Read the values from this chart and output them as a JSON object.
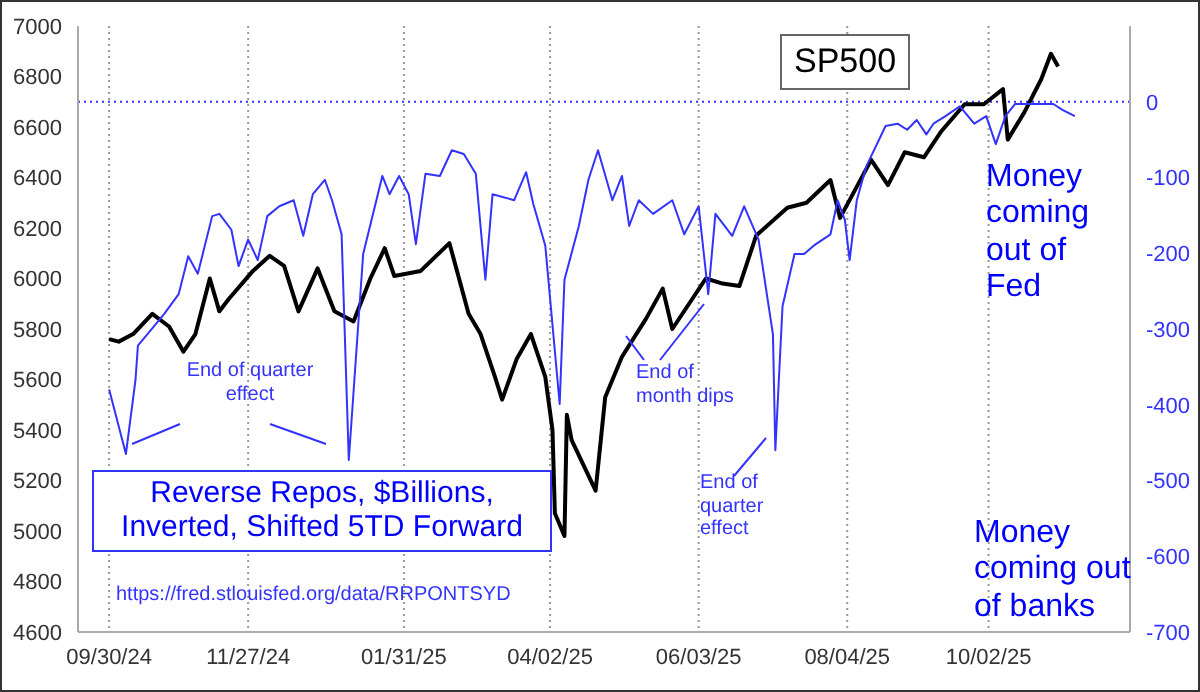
{
  "chart_data": {
    "type": "line",
    "title": "SP500",
    "xlim": [
      "2024-09-17",
      "2025-11-30"
    ],
    "xticks": [
      {
        "value": "2024-09-30",
        "label": "09/30/24"
      },
      {
        "value": "2024-11-27",
        "label": "11/27/24"
      },
      {
        "value": "2025-01-31",
        "label": "01/31/25"
      },
      {
        "value": "2025-04-02",
        "label": "04/02/25"
      },
      {
        "value": "2025-06-03",
        "label": "06/03/25"
      },
      {
        "value": "2025-08-04",
        "label": "08/04/25"
      },
      {
        "value": "2025-10-02",
        "label": "10/02/25"
      }
    ],
    "ylim": [
      4600,
      7000
    ],
    "yticks": [
      4600,
      4800,
      5000,
      5200,
      5400,
      5600,
      5800,
      6000,
      6200,
      6400,
      6600,
      6800,
      7000
    ],
    "y2lim": [
      -700,
      100
    ],
    "y2ticks": [
      -700,
      -600,
      -500,
      -400,
      -300,
      -200,
      -100,
      0
    ],
    "grid": "x",
    "ref_lines": [
      {
        "axis": "y2",
        "value": 0,
        "color": "#3333ff",
        "line_style": "dotted"
      }
    ],
    "annotations": [
      "End of quarter effect",
      "End of month dips",
      "End of quarter effect",
      "Reverse Repos, $Billions, Inverted, Shifted 5TD Forward",
      "https://fred.stlouisfed.org/data/RRPONTSYD",
      "Money coming out of Fed",
      "Money coming out of banks"
    ],
    "series": [
      {
        "color": "#000000",
        "axis": "y",
        "x": [
          "2024-09-30",
          "2024-10-04",
          "2024-10-10",
          "2024-10-18",
          "2024-10-25",
          "2024-10-31",
          "2024-11-05",
          "2024-11-11",
          "2024-11-15",
          "2024-11-19",
          "2024-11-29",
          "2024-12-06",
          "2024-12-12",
          "2024-12-18",
          "2024-12-26",
          "2025-01-02",
          "2025-01-10",
          "2025-01-17",
          "2025-01-23",
          "2025-01-27",
          "2025-02-07",
          "2025-02-19",
          "2025-02-27",
          "2025-03-04",
          "2025-03-10",
          "2025-03-13",
          "2025-03-19",
          "2025-03-25",
          "2025-03-31",
          "2025-04-03",
          "2025-04-04",
          "2025-04-08",
          "2025-04-09",
          "2025-04-11",
          "2025-04-21",
          "2025-04-25",
          "2025-05-02",
          "2025-05-12",
          "2025-05-19",
          "2025-05-23",
          "2025-06-06",
          "2025-06-13",
          "2025-06-20",
          "2025-06-27",
          "2025-07-10",
          "2025-07-18",
          "2025-07-28",
          "2025-08-01",
          "2025-08-14",
          "2025-08-21",
          "2025-08-28",
          "2025-09-05",
          "2025-09-12",
          "2025-09-22",
          "2025-09-30",
          "2025-10-08",
          "2025-10-10",
          "2025-10-17",
          "2025-10-24",
          "2025-10-28",
          "2025-10-31"
        ],
        "values": [
          5760,
          5750,
          5780,
          5860,
          5810,
          5710,
          5780,
          6000,
          5870,
          5920,
          6030,
          6090,
          6050,
          5870,
          6040,
          5870,
          5830,
          6000,
          6120,
          6010,
          6030,
          6140,
          5860,
          5780,
          5610,
          5520,
          5680,
          5780,
          5610,
          5400,
          5070,
          4980,
          5460,
          5360,
          5160,
          5530,
          5690,
          5840,
          5960,
          5800,
          6000,
          5980,
          5970,
          6170,
          6280,
          6300,
          6390,
          6240,
          6470,
          6370,
          6500,
          6480,
          6580,
          6690,
          6690,
          6750,
          6550,
          6660,
          6790,
          6890,
          6840
        ]
      },
      {
        "color": "#3333ff",
        "axis": "y2",
        "x": [
          "2024-09-30",
          "2024-10-07",
          "2024-10-11",
          "2024-10-12",
          "2024-10-23",
          "2024-10-29",
          "2024-11-02",
          "2024-11-06",
          "2024-11-12",
          "2024-11-15",
          "2024-11-20",
          "2024-11-23",
          "2024-11-27",
          "2024-12-01",
          "2024-12-05",
          "2024-12-10",
          "2024-12-16",
          "2024-12-20",
          "2024-12-24",
          "2024-12-29",
          "2025-01-01",
          "2025-01-05",
          "2025-01-08",
          "2025-01-14",
          "2025-01-22",
          "2025-01-25",
          "2025-01-29",
          "2025-02-02",
          "2025-02-05",
          "2025-02-09",
          "2025-02-15",
          "2025-02-20",
          "2025-02-25",
          "2025-03-02",
          "2025-03-06",
          "2025-03-09",
          "2025-03-18",
          "2025-03-23",
          "2025-03-26",
          "2025-03-31",
          "2025-04-06",
          "2025-04-08",
          "2025-04-14",
          "2025-04-18",
          "2025-04-22",
          "2025-04-28",
          "2025-05-02",
          "2025-05-05",
          "2025-05-09",
          "2025-05-15",
          "2025-05-23",
          "2025-05-28",
          "2025-06-03",
          "2025-06-07",
          "2025-06-10",
          "2025-06-17",
          "2025-06-22",
          "2025-06-28",
          "2025-07-04",
          "2025-07-05",
          "2025-07-08",
          "2025-07-13",
          "2025-07-17",
          "2025-07-21",
          "2025-07-28",
          "2025-07-31",
          "2025-08-03",
          "2025-08-05",
          "2025-08-08",
          "2025-08-12",
          "2025-08-20",
          "2025-08-25",
          "2025-08-29",
          "2025-09-02",
          "2025-09-06",
          "2025-09-09",
          "2025-09-14",
          "2025-09-20",
          "2025-09-26",
          "2025-10-01",
          "2025-10-05",
          "2025-10-09",
          "2025-10-13",
          "2025-10-21",
          "2025-10-29",
          "2025-11-02",
          "2025-11-07"
        ],
        "values": [
          -380,
          -465,
          -367,
          -322,
          -280,
          -254,
          -204,
          -227,
          -151,
          -148,
          -169,
          -217,
          -182,
          -209,
          -151,
          -138,
          -130,
          -177,
          -122,
          -103,
          -130,
          -175,
          -473,
          -201,
          -98,
          -122,
          -98,
          -122,
          -188,
          -95,
          -98,
          -64,
          -69,
          -95,
          -235,
          -122,
          -130,
          -93,
          -135,
          -190,
          -399,
          -235,
          -164,
          -103,
          -64,
          -130,
          -98,
          -164,
          -130,
          -148,
          -130,
          -175,
          -138,
          -254,
          -148,
          -177,
          -138,
          -182,
          -307,
          -460,
          -270,
          -201,
          -201,
          -190,
          -175,
          -130,
          -156,
          -209,
          -130,
          -85,
          -32,
          -29,
          -37,
          -24,
          -43,
          -29,
          -19,
          -6,
          -29,
          -19,
          -56,
          -19,
          -3,
          -3,
          -3,
          -11,
          -19
        ]
      }
    ]
  }
}
